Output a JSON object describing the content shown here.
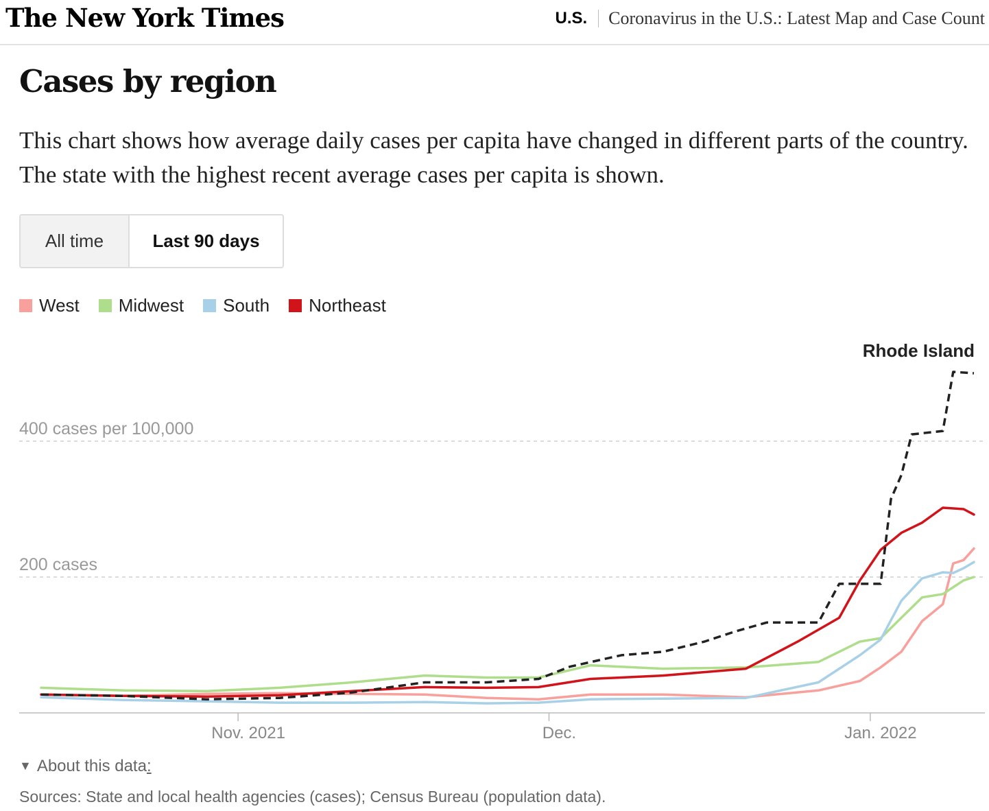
{
  "header": {
    "logo": "The New York Times",
    "section": "U.S.",
    "article_title": "Coronavirus in the U.S.: Latest Map and Case Count"
  },
  "title": "Cases by region",
  "description": "This chart shows how average daily cases per capita have changed in different parts of the country. The state with the highest recent average cases per capita is shown.",
  "toggle": {
    "options": [
      "All time",
      "Last 90 days"
    ],
    "selected": "Last 90 days"
  },
  "legend": [
    {
      "label": "West",
      "color": "#f7a09c"
    },
    {
      "label": "Midwest",
      "color": "#aedd8b"
    },
    {
      "label": "South",
      "color": "#a8d0e6"
    },
    {
      "label": "Northeast",
      "color": "#d0141a"
    }
  ],
  "about": {
    "label": "About this data",
    "suffix": ":"
  },
  "sources": "Sources: State and local health agencies (cases); Census Bureau (population data).",
  "chart_data": {
    "type": "line",
    "x_start": "2021-10-13",
    "x_end": "2022-01-11",
    "x_ticks": [
      {
        "date": "2021-11-01",
        "label": "Nov. 2021"
      },
      {
        "date": "2021-12-01",
        "label": "Dec."
      },
      {
        "date": "2022-01-01",
        "label": "Jan. 2022"
      }
    ],
    "y_ticks": [
      {
        "value": 400,
        "label": "400 cases per 100,000"
      },
      {
        "value": 200,
        "label": "200 cases"
      }
    ],
    "ylim": [
      0,
      500
    ],
    "grid": true,
    "series": [
      {
        "name": "West",
        "color": "#f7a09c",
        "points": [
          [
            "2021-10-13",
            27
          ],
          [
            "2021-10-21",
            25
          ],
          [
            "2021-10-29",
            28
          ],
          [
            "2021-11-05",
            29
          ],
          [
            "2021-11-12",
            28
          ],
          [
            "2021-11-19",
            27
          ],
          [
            "2021-11-25",
            22
          ],
          [
            "2021-11-30",
            20
          ],
          [
            "2021-12-05",
            27
          ],
          [
            "2021-12-12",
            27
          ],
          [
            "2021-12-20",
            23
          ],
          [
            "2021-12-27",
            33
          ],
          [
            "2021-12-31",
            47
          ],
          [
            "2022-01-02",
            67
          ],
          [
            "2022-01-04",
            90
          ],
          [
            "2022-01-06",
            135
          ],
          [
            "2022-01-08",
            160
          ],
          [
            "2022-01-09",
            220
          ],
          [
            "2022-01-10",
            225
          ],
          [
            "2022-01-11",
            242
          ]
        ]
      },
      {
        "name": "Midwest",
        "color": "#aedd8b",
        "points": [
          [
            "2021-10-13",
            37
          ],
          [
            "2021-10-21",
            33
          ],
          [
            "2021-10-29",
            32
          ],
          [
            "2021-11-05",
            37
          ],
          [
            "2021-11-12",
            45
          ],
          [
            "2021-11-19",
            55
          ],
          [
            "2021-11-25",
            52
          ],
          [
            "2021-11-30",
            52
          ],
          [
            "2021-12-05",
            70
          ],
          [
            "2021-12-12",
            65
          ],
          [
            "2021-12-20",
            67
          ],
          [
            "2021-12-27",
            75
          ],
          [
            "2021-12-31",
            105
          ],
          [
            "2022-01-02",
            110
          ],
          [
            "2022-01-04",
            140
          ],
          [
            "2022-01-06",
            170
          ],
          [
            "2022-01-08",
            175
          ],
          [
            "2022-01-09",
            185
          ],
          [
            "2022-01-10",
            195
          ],
          [
            "2022-01-11",
            200
          ]
        ]
      },
      {
        "name": "South",
        "color": "#a8d0e6",
        "points": [
          [
            "2021-10-13",
            23
          ],
          [
            "2021-10-21",
            19
          ],
          [
            "2021-10-29",
            17
          ],
          [
            "2021-11-05",
            15
          ],
          [
            "2021-11-12",
            15
          ],
          [
            "2021-11-19",
            16
          ],
          [
            "2021-11-25",
            14
          ],
          [
            "2021-11-30",
            15
          ],
          [
            "2021-12-05",
            20
          ],
          [
            "2021-12-12",
            21
          ],
          [
            "2021-12-20",
            22
          ],
          [
            "2021-12-27",
            45
          ],
          [
            "2021-12-31",
            85
          ],
          [
            "2022-01-02",
            108
          ],
          [
            "2022-01-04",
            165
          ],
          [
            "2022-01-06",
            198
          ],
          [
            "2022-01-08",
            207
          ],
          [
            "2022-01-09",
            206
          ],
          [
            "2022-01-10",
            213
          ],
          [
            "2022-01-11",
            222
          ]
        ]
      },
      {
        "name": "Northeast",
        "color": "#d0141a",
        "points": [
          [
            "2021-10-13",
            27
          ],
          [
            "2021-10-21",
            25
          ],
          [
            "2021-10-29",
            24
          ],
          [
            "2021-11-05",
            26
          ],
          [
            "2021-11-12",
            32
          ],
          [
            "2021-11-19",
            38
          ],
          [
            "2021-11-25",
            37
          ],
          [
            "2021-11-30",
            38
          ],
          [
            "2021-12-05",
            50
          ],
          [
            "2021-12-12",
            55
          ],
          [
            "2021-12-20",
            65
          ],
          [
            "2021-12-25",
            105
          ],
          [
            "2021-12-29",
            140
          ],
          [
            "2021-12-31",
            195
          ],
          [
            "2022-01-02",
            240
          ],
          [
            "2022-01-04",
            265
          ],
          [
            "2022-01-06",
            280
          ],
          [
            "2022-01-08",
            302
          ],
          [
            "2022-01-10",
            300
          ],
          [
            "2022-01-11",
            292
          ]
        ]
      }
    ],
    "highlight": {
      "name": "Rhode Island",
      "color": "#222222",
      "dashed": true,
      "points": [
        [
          "2021-10-13",
          27
        ],
        [
          "2021-10-21",
          25
        ],
        [
          "2021-10-29",
          20
        ],
        [
          "2021-11-05",
          22
        ],
        [
          "2021-11-12",
          30
        ],
        [
          "2021-11-19",
          45
        ],
        [
          "2021-11-25",
          45
        ],
        [
          "2021-11-30",
          50
        ],
        [
          "2021-12-03",
          68
        ],
        [
          "2021-12-08",
          85
        ],
        [
          "2021-12-12",
          90
        ],
        [
          "2021-12-16",
          105
        ],
        [
          "2021-12-19",
          120
        ],
        [
          "2021-12-22",
          133
        ],
        [
          "2021-12-27",
          133
        ],
        [
          "2021-12-29",
          190
        ],
        [
          "2022-01-02",
          190
        ],
        [
          "2022-01-03",
          315
        ],
        [
          "2022-01-04",
          350
        ],
        [
          "2022-01-05",
          410
        ],
        [
          "2022-01-08",
          415
        ],
        [
          "2022-01-09",
          502
        ],
        [
          "2022-01-11",
          500
        ]
      ]
    }
  }
}
